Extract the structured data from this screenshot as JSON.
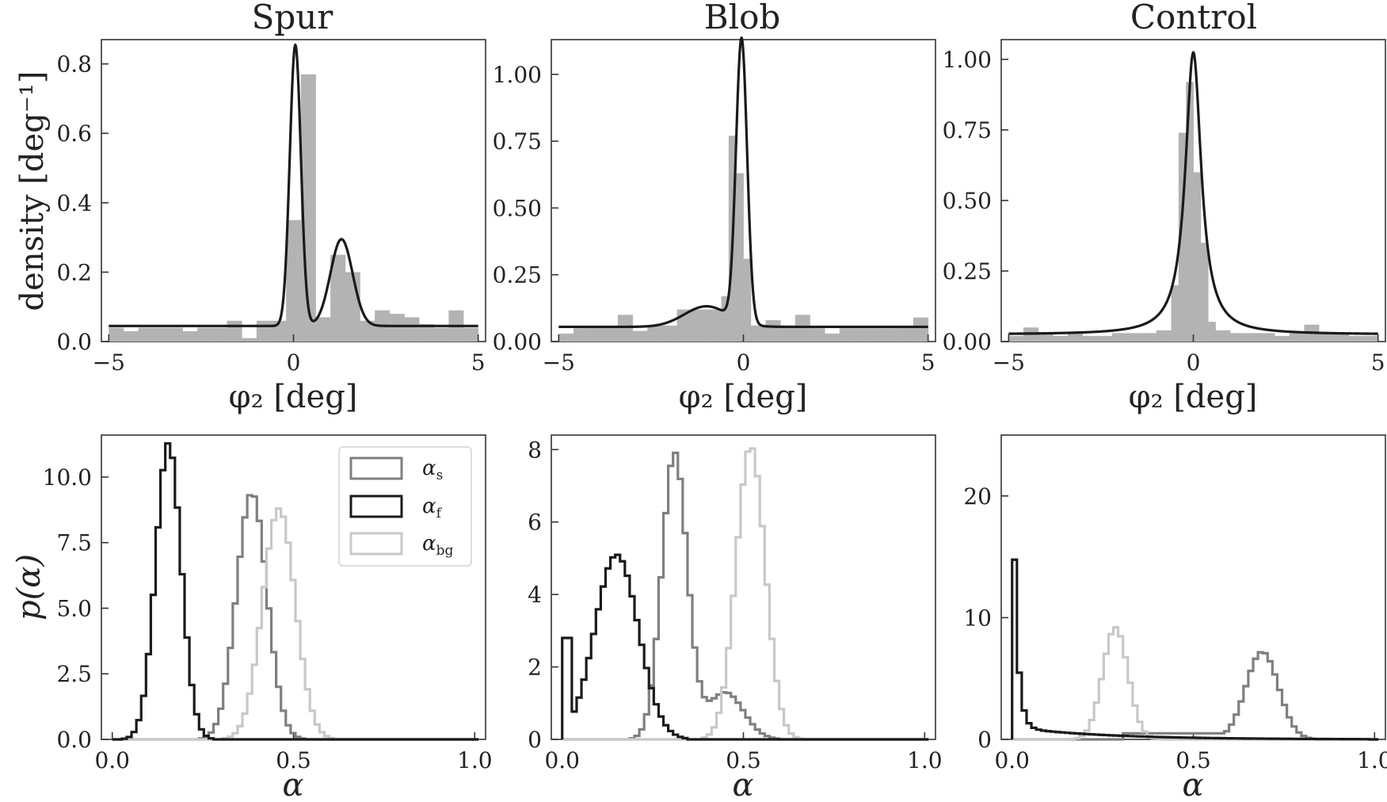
{
  "figure": {
    "colors": {
      "fit_line": "#1a1a1a",
      "histogram_fill": "#b3b3b3",
      "alpha_s": "#7f7f7f",
      "alpha_f": "#1a1a1a",
      "alpha_bg": "#c8c8c8",
      "axes": "#333333"
    }
  },
  "chart_data": [
    {
      "id": "spur-top",
      "type": "histogram+line",
      "title": "Spur",
      "xlabel": "φ₂ [deg]",
      "ylabel": "density [deg⁻¹]",
      "xlim": [
        -5.2,
        5.2
      ],
      "ylim": [
        0,
        0.87
      ],
      "xticks": [
        -5,
        0,
        5
      ],
      "xtick_labels": [
        "−5",
        "0",
        "5"
      ],
      "yticks": [
        0.0,
        0.2,
        0.4,
        0.6,
        0.8
      ],
      "ytick_labels": [
        "0.0",
        "0.2",
        "0.4",
        "0.6",
        "0.8"
      ],
      "histogram": {
        "bin_edges": [
          -5,
          -4.6,
          -4.2,
          -3.8,
          -3.4,
          -3,
          -2.6,
          -2.2,
          -1.8,
          -1.4,
          -1,
          -0.6,
          -0.2,
          0.2,
          0.6,
          1,
          1.4,
          1.8,
          2.2,
          2.6,
          3,
          3.4,
          3.8,
          4.2,
          4.6,
          5
        ],
        "counts": [
          0.04,
          0.03,
          0.04,
          0.04,
          0.04,
          0.03,
          0.04,
          0.04,
          0.06,
          0.01,
          0.06,
          0.06,
          0.35,
          0.77,
          0.07,
          0.25,
          0.2,
          0.06,
          0.09,
          0.08,
          0.07,
          0.05,
          0.04,
          0.09,
          0.04
        ]
      },
      "line": {
        "background": 0.045,
        "components": [
          {
            "mu": 0.05,
            "sigma": 0.15,
            "amp": 0.81
          },
          {
            "mu": 1.3,
            "sigma": 0.3,
            "amp": 0.25
          }
        ]
      }
    },
    {
      "id": "blob-top",
      "type": "histogram+line",
      "title": "Blob",
      "xlabel": "φ₂ [deg]",
      "ylabel": "",
      "xlim": [
        -5.2,
        5.2
      ],
      "ylim": [
        0,
        1.13
      ],
      "xticks": [
        -5,
        0,
        5
      ],
      "xtick_labels": [
        "−5",
        "0",
        "5"
      ],
      "yticks": [
        0.0,
        0.25,
        0.5,
        0.75,
        1.0
      ],
      "ytick_labels": [
        "0.00",
        "0.25",
        "0.50",
        "0.75",
        "1.00"
      ],
      "histogram": {
        "bin_edges": [
          -5,
          -4.6,
          -4.2,
          -3.8,
          -3.4,
          -3,
          -2.6,
          -2.2,
          -1.8,
          -1.4,
          -1,
          -0.6,
          -0.4,
          -0.2,
          0,
          0.2,
          0.6,
          1,
          1.4,
          1.8,
          2.2,
          2.6,
          3,
          3.4,
          3.8,
          4.2,
          4.6,
          5
        ],
        "counts": [
          0.03,
          0.05,
          0.06,
          0.06,
          0.1,
          0.04,
          0.06,
          0.06,
          0.12,
          0.12,
          0.12,
          0.17,
          0.77,
          0.63,
          0.31,
          0.06,
          0.08,
          0.06,
          0.1,
          0.05,
          0.03,
          0.05,
          0.05,
          0.05,
          0.05,
          0.06,
          0.09
        ]
      },
      "line": {
        "background": 0.055,
        "components": [
          {
            "mu": -0.05,
            "sigma": 0.15,
            "amp": 1.06
          },
          {
            "mu": -1.0,
            "sigma": 0.6,
            "amp": 0.077
          }
        ]
      }
    },
    {
      "id": "control-top",
      "type": "histogram+line",
      "title": "Control",
      "xlabel": "φ₂ [deg]",
      "ylabel": "",
      "xlim": [
        -5.2,
        5.2
      ],
      "ylim": [
        0,
        1.07
      ],
      "xticks": [
        -5,
        0,
        5
      ],
      "xtick_labels": [
        "−5",
        "0",
        "5"
      ],
      "yticks": [
        0.0,
        0.25,
        0.5,
        0.75,
        1.0
      ],
      "ytick_labels": [
        "0.00",
        "0.25",
        "0.50",
        "0.75",
        "1.00"
      ],
      "histogram": {
        "bin_edges": [
          -5,
          -4.6,
          -4.2,
          -3.8,
          -3.4,
          -3,
          -2.6,
          -2.2,
          -1.8,
          -1.4,
          -1,
          -0.6,
          -0.4,
          -0.2,
          0,
          0.2,
          0.4,
          0.6,
          1,
          1.4,
          1.8,
          2.2,
          2.6,
          3,
          3.4,
          3.8,
          4.2,
          4.6,
          5
        ],
        "counts": [
          0.02,
          0.05,
          0.03,
          0.02,
          0.03,
          0.02,
          0.02,
          0.03,
          0.03,
          0.03,
          0.04,
          0.2,
          0.74,
          0.92,
          0.6,
          0.35,
          0.07,
          0.04,
          0.03,
          0.03,
          0.03,
          0.02,
          0.03,
          0.06,
          0.03,
          0.03,
          0.02,
          0.02
        ]
      },
      "line": {
        "background": 0.025,
        "lorentz": {
          "mu": 0.0,
          "gamma": 0.26,
          "amp": 1.0
        }
      }
    },
    {
      "id": "spur-bottom",
      "type": "step-histogram",
      "title": "",
      "xlabel": "α",
      "ylabel": "p(α)",
      "xlim": [
        -0.03,
        1.03
      ],
      "ylim": [
        0,
        11.6
      ],
      "xticks": [
        0.0,
        0.5,
        1.0
      ],
      "xtick_labels": [
        "0.0",
        "0.5",
        "1.0"
      ],
      "yticks": [
        0.0,
        2.5,
        5.0,
        7.5,
        10.0
      ],
      "ytick_labels": [
        "0.0",
        "2.5",
        "5.0",
        "7.5",
        "10.0"
      ],
      "bin_width": 0.0133,
      "legend": {
        "placement": "top-right",
        "entries": [
          {
            "series": "alpha_s",
            "text": "α",
            "sub": "s"
          },
          {
            "series": "alpha_f",
            "text": "α",
            "sub": "f"
          },
          {
            "series": "alpha_bg",
            "text": "α",
            "sub": "bg"
          }
        ]
      },
      "series": [
        {
          "name": "alpha_s",
          "components": [
            {
              "mu": 0.385,
              "sigma": 0.042,
              "amp": 9.4
            }
          ]
        },
        {
          "name": "alpha_f",
          "components": [
            {
              "mu": 0.155,
              "sigma": 0.035,
              "amp": 11.3
            }
          ]
        },
        {
          "name": "alpha_bg",
          "components": [
            {
              "mu": 0.46,
              "sigma": 0.045,
              "amp": 8.8
            }
          ]
        }
      ]
    },
    {
      "id": "blob-bottom",
      "type": "step-histogram",
      "title": "",
      "xlabel": "α",
      "ylabel": "",
      "xlim": [
        -0.03,
        1.03
      ],
      "ylim": [
        0,
        8.4
      ],
      "xticks": [
        0.0,
        0.5,
        1.0
      ],
      "xtick_labels": [
        "0.0",
        "0.5",
        "1.0"
      ],
      "yticks": [
        0,
        2,
        4,
        6,
        8
      ],
      "ytick_labels": [
        "0",
        "2",
        "4",
        "6",
        "8"
      ],
      "bin_width": 0.0133,
      "series": [
        {
          "name": "alpha_s",
          "components": [
            {
              "mu": 0.31,
              "sigma": 0.035,
              "amp": 7.9
            },
            {
              "mu": 0.45,
              "sigma": 0.05,
              "amp": 1.3
            }
          ]
        },
        {
          "name": "alpha_f",
          "components": [
            {
              "mu": 0.15,
              "sigma": 0.06,
              "amp": 5.1
            }
          ],
          "spike": {
            "x_max": 0.02,
            "value": 2.8
          }
        },
        {
          "name": "alpha_bg",
          "components": [
            {
              "mu": 0.52,
              "sigma": 0.04,
              "amp": 8.1
            }
          ]
        }
      ]
    },
    {
      "id": "control-bottom",
      "type": "step-histogram",
      "title": "",
      "xlabel": "α",
      "ylabel": "",
      "xlim": [
        -0.03,
        1.03
      ],
      "ylim": [
        0,
        25
      ],
      "xticks": [
        0.0,
        0.5,
        1.0
      ],
      "xtick_labels": [
        "0.0",
        "0.5",
        "1.0"
      ],
      "yticks": [
        0,
        10,
        20
      ],
      "ytick_labels": [
        "0",
        "10",
        "20"
      ],
      "bin_width": 0.0133,
      "series": [
        {
          "name": "alpha_s",
          "components": [
            {
              "mu": 0.69,
              "sigma": 0.045,
              "amp": 7.2
            }
          ],
          "floor": {
            "from": 0.3,
            "to": 0.63,
            "value": 0.5
          }
        },
        {
          "name": "alpha_f",
          "components": [],
          "decay": {
            "start_value": 24.0,
            "scale": 0.012,
            "tail": 1.0,
            "tail_scale": 0.25
          }
        },
        {
          "name": "alpha_bg",
          "components": [
            {
              "mu": 0.285,
              "sigma": 0.035,
              "amp": 9.2
            }
          ]
        }
      ]
    }
  ]
}
